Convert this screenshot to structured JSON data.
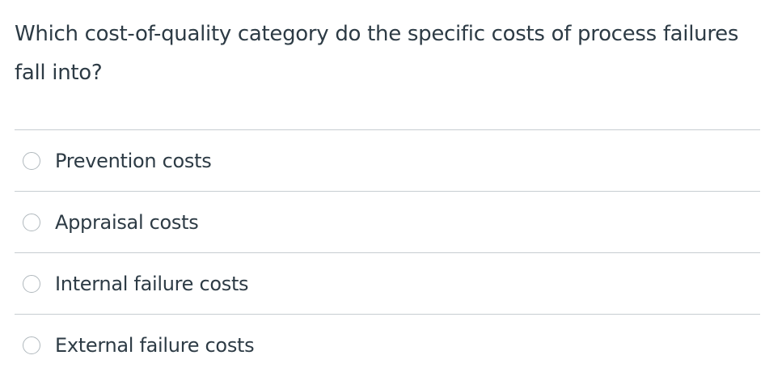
{
  "question": {
    "text": "Which cost-of-quality category do the specific costs of process failures fall into?",
    "options": [
      "Prevention costs",
      "Appraisal costs",
      "Internal failure costs",
      "External failure costs"
    ]
  }
}
